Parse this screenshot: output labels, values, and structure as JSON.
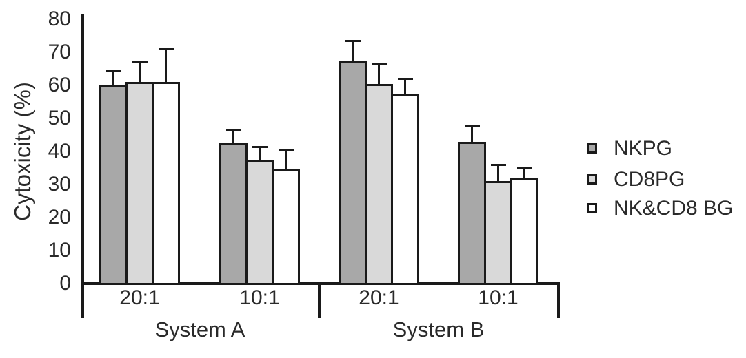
{
  "figure": {
    "background_color": "#ffffff",
    "axis_color": "#1a1a1a",
    "text_color": "#2a2a2a"
  },
  "chart_data": {
    "type": "bar",
    "title": "",
    "xlabel": "",
    "ylabel": "Cytoxicity (%)",
    "ylim": [
      0,
      80
    ],
    "yticks": [
      0,
      10,
      20,
      30,
      40,
      50,
      60,
      70,
      80
    ],
    "grid": false,
    "error_bars": "upper-only",
    "categories": [
      "20:1",
      "10:1",
      "20:1",
      "10:1"
    ],
    "category_groups": [
      {
        "label": "System A",
        "category_indexes": [
          0,
          1
        ]
      },
      {
        "label": "System B",
        "category_indexes": [
          2,
          3
        ]
      }
    ],
    "series": [
      {
        "name": "NKPG",
        "color": "#a8a8a8",
        "values": [
          60,
          42.5,
          67.5,
          43
        ],
        "errors_plus": [
          4.5,
          4,
          6,
          5
        ]
      },
      {
        "name": "CD8PG",
        "color": "#d9d9d9",
        "values": [
          61,
          37.5,
          60.5,
          31
        ],
        "errors_plus": [
          6,
          4,
          6,
          5
        ]
      },
      {
        "name": "NK&CD8 BG",
        "color": "#ffffff",
        "values": [
          61,
          34.5,
          57.5,
          32
        ],
        "errors_plus": [
          10,
          6,
          4.5,
          3
        ]
      }
    ],
    "legend": {
      "position": "right",
      "entries": [
        "NKPG",
        "CD8PG",
        "NK&CD8 BG"
      ]
    }
  }
}
